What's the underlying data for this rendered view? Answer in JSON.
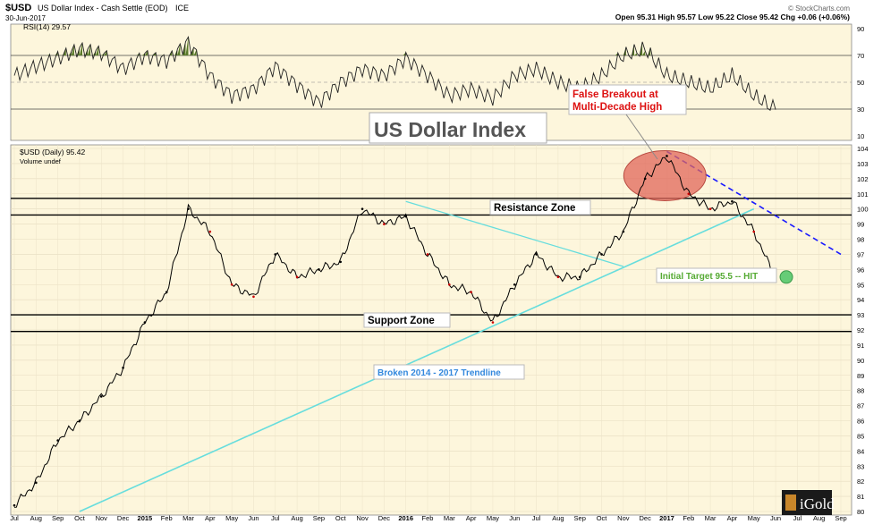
{
  "header": {
    "symbol": "$USD",
    "description": "US Dollar Index - Cash Settle (EOD)",
    "exchange": "ICE",
    "date": "30-Jun-2017",
    "watermark": "© StockCharts.com",
    "ohlc": "Open 95.31 High 95.57 Low 95.22 Close 95.42 Chg +0.06 (+0.06%)"
  },
  "rsi_panel": {
    "legend": "RSI(14) 29.57",
    "ticks": [
      "90",
      "70",
      "50",
      "30",
      "10"
    ]
  },
  "price_panel": {
    "legend": "$USD (Daily) 95.42",
    "volume_note": "Volume undef"
  },
  "annotations": {
    "title": "US Dollar Index",
    "false_breakout": [
      "False Breakout at",
      "Multi-Decade High"
    ],
    "resistance": "Resistance Zone",
    "support": "Support Zone",
    "trendline": "Broken 2014 - 2017 Trendline",
    "target": "Initial Target 95.5 -- HIT",
    "logo": "iGold"
  },
  "colors": {
    "panel_bg": "#fdf6dc",
    "price": "#000000",
    "down_ticks": "#cc0000",
    "trendline": "#66dddd",
    "downtrend": "#1a1aff",
    "ellipse": "#e0665a",
    "target_circle": "#66cc77",
    "red_text": "#dd1111",
    "blue_text": "#3388dd",
    "green_text": "#55aa33"
  },
  "chart_data": {
    "type": "line",
    "title": "US Dollar Index",
    "ylim": [
      80,
      104
    ],
    "y_ticks": [
      "104",
      "103",
      "102",
      "101",
      "100",
      "99",
      "98",
      "97",
      "96",
      "95",
      "94",
      "93",
      "92",
      "91",
      "90",
      "89",
      "88",
      "87",
      "86",
      "85",
      "84",
      "83",
      "82",
      "81",
      "80"
    ],
    "x_ticks": [
      "Jul",
      "Aug",
      "Sep",
      "Oct",
      "Nov",
      "Dec",
      "2015",
      "Feb",
      "Mar",
      "Apr",
      "May",
      "Jun",
      "Jul",
      "Aug",
      "Sep",
      "Oct",
      "Nov",
      "Dec",
      "2016",
      "Feb",
      "Mar",
      "Apr",
      "May",
      "Jun",
      "Jul",
      "Aug",
      "Sep",
      "Oct",
      "Nov",
      "Dec",
      "2017",
      "Feb",
      "Mar",
      "Apr",
      "May",
      "Jun",
      "Jul",
      "Aug",
      "Sep"
    ],
    "series": [
      {
        "x": [
          "Jul-2014",
          "Aug-2014",
          "Sep-2014",
          "Oct-2014",
          "Nov-2014",
          "Dec-2014",
          "Jan-2015",
          "Feb-2015",
          "Mar-2015",
          "Apr-2015",
          "May-2015",
          "Jun-2015",
          "Jul-2015",
          "Aug-2015",
          "Sep-2015",
          "Oct-2015",
          "Nov-2015",
          "Dec-2015",
          "Jan-2016",
          "Feb-2016",
          "Mar-2016",
          "Apr-2016",
          "May-2016",
          "Jun-2016",
          "Jul-2016",
          "Aug-2016",
          "Sep-2016",
          "Oct-2016",
          "Nov-2016",
          "Dec-2016",
          "Jan-2017",
          "Feb-2017",
          "Mar-2017",
          "Apr-2017",
          "May-2017",
          "Jun-2017"
        ],
        "values": [
          80.4,
          81.9,
          84.7,
          86.0,
          87.6,
          89.5,
          92.5,
          94.5,
          100.0,
          98.5,
          95.0,
          94.2,
          97.0,
          95.5,
          96.0,
          96.5,
          100.0,
          99.0,
          99.5,
          97.0,
          95.0,
          94.5,
          92.5,
          95.0,
          97.0,
          95.5,
          95.5,
          97.0,
          98.5,
          102.0,
          103.5,
          101.0,
          100.0,
          100.5,
          98.5,
          95.4
        ]
      }
    ],
    "rsi": {
      "name": "RSI(14)",
      "ylim": [
        10,
        90
      ],
      "values": [
        55,
        62,
        68,
        75,
        72,
        60,
        70,
        66,
        80,
        55,
        40,
        45,
        62,
        48,
        35,
        50,
        60,
        55,
        68,
        55,
        40,
        45,
        38,
        55,
        60,
        50,
        45,
        55,
        70,
        75,
        55,
        50,
        45,
        55,
        40,
        29.57
      ]
    },
    "levels": {
      "resistance_top": 100.7,
      "resistance_bottom": 99.6,
      "support_top": 93.0,
      "support_bottom": 91.9
    },
    "trendlines": {
      "uptrend": {
        "from": [
          "Oct-2014",
          80.0
        ],
        "to": [
          "May-2017",
          100.0
        ]
      },
      "downtrend": {
        "from": [
          "Jan-2017",
          103.8
        ],
        "to": [
          "Sep-2017",
          97.0
        ]
      },
      "triangle_upper": {
        "from": [
          "Jan-2016",
          100.5
        ],
        "to": [
          "Nov-2016",
          96.2
        ]
      }
    },
    "target": 95.5
  }
}
